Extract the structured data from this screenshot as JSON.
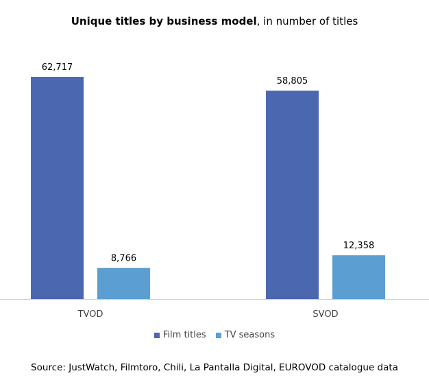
{
  "title": {
    "bold": "Unique titles by business model",
    "rest": ", in number of titles"
  },
  "source": "Source: JustWatch, Filmtoro, Chili, La Pantalla Digital, EUROVOD catalogue data",
  "chart_data": {
    "type": "bar",
    "title": "Unique titles by business model, in number of titles",
    "categories": [
      "TVOD",
      "SVOD"
    ],
    "series": [
      {
        "name": "Film titles",
        "values": [
          62717,
          58805
        ],
        "labels": [
          "62,717",
          "58,805"
        ],
        "color": "#4a67b0"
      },
      {
        "name": "TV seasons",
        "values": [
          8766,
          12358
        ],
        "labels": [
          "8,766",
          "12,358"
        ],
        "color": "#5b9fd2"
      }
    ],
    "ylim": [
      0,
      62717
    ],
    "grid": false,
    "legend": "bottom"
  }
}
